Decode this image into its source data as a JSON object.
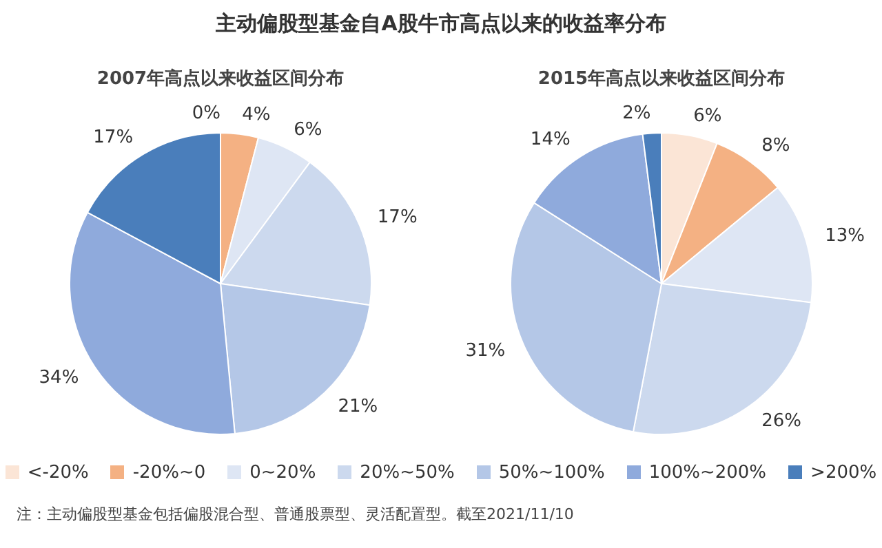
{
  "chart_data": [
    {
      "type": "pie",
      "title": "2007年高点以来收益区间分布",
      "annotations": [
        "主动偏股型基金自A股牛市高点以来的收益率分布",
        "注：主动偏股型基金包括偏股混合型、普通股票型、灵活配置型。截至2021/11/10"
      ],
      "legend": "bottom",
      "categories": [
        "<-20%",
        "-20%~0",
        "0~20%",
        "20%~50%",
        "50%~100%",
        "100%~200%",
        ">200%"
      ],
      "values": [
        0,
        4,
        6,
        17,
        21,
        34,
        17
      ],
      "value_labels": [
        "0%",
        "4%",
        "6%",
        "17%",
        "21%",
        "34%",
        "17%"
      ],
      "colors": [
        "#fbe5d6",
        "#f4b183",
        "#dee6f4",
        "#ccd9ee",
        "#b4c7e7",
        "#8faadc",
        "#4a7ebb"
      ]
    },
    {
      "type": "pie",
      "title": "2015年高点以来收益区间分布",
      "values": [
        6,
        8,
        13,
        26,
        31,
        14,
        2
      ],
      "value_labels": [
        "6%",
        "8%",
        "13%",
        "26%",
        "31%",
        "14%",
        "2%"
      ],
      "colors": [
        "#fbe5d6",
        "#f4b183",
        "#dee6f4",
        "#ccd9ee",
        "#b4c7e7",
        "#8faadc",
        "#4a7ebb"
      ]
    }
  ]
}
